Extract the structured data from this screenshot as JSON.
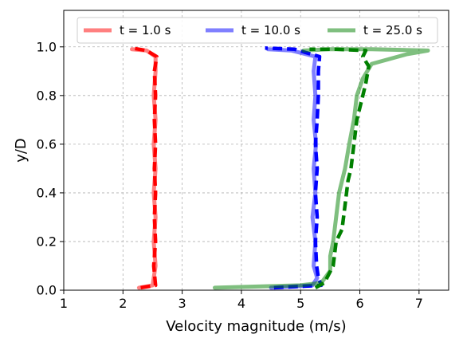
{
  "chart_data": {
    "type": "line",
    "title": "",
    "xlabel": "Velocity magnitude (m/s)",
    "ylabel": "y/D",
    "xlim": [
      1,
      7.5
    ],
    "ylim": [
      0.0,
      1.15
    ],
    "xticks": [
      "1",
      "2",
      "3",
      "4",
      "5",
      "6",
      "7"
    ],
    "yticks": [
      "0.0",
      "0.2",
      "0.4",
      "0.6",
      "0.8",
      "1.0"
    ],
    "grid": true,
    "legend": {
      "placement": "top-center",
      "columns": 3
    },
    "series": [
      {
        "name": "t = 1.0 s",
        "color": "#ff0000",
        "points": [
          [
            2.27,
            0.01
          ],
          [
            2.5,
            0.02
          ],
          [
            2.55,
            0.1
          ],
          [
            2.52,
            0.2
          ],
          [
            2.55,
            0.3
          ],
          [
            2.52,
            0.4
          ],
          [
            2.55,
            0.5
          ],
          [
            2.52,
            0.6
          ],
          [
            2.55,
            0.7
          ],
          [
            2.52,
            0.8
          ],
          [
            2.55,
            0.9
          ],
          [
            2.55,
            0.96
          ],
          [
            2.4,
            0.985
          ],
          [
            2.15,
            0.99
          ]
        ],
        "dashed_points": [
          [
            2.3,
            0.01
          ],
          [
            2.55,
            0.02
          ],
          [
            2.52,
            0.1
          ],
          [
            2.55,
            0.2
          ],
          [
            2.53,
            0.3
          ],
          [
            2.55,
            0.4
          ],
          [
            2.53,
            0.5
          ],
          [
            2.55,
            0.6
          ],
          [
            2.53,
            0.7
          ],
          [
            2.55,
            0.8
          ],
          [
            2.53,
            0.9
          ],
          [
            2.57,
            0.96
          ],
          [
            2.4,
            0.985
          ],
          [
            2.15,
            0.995
          ]
        ]
      },
      {
        "name": "t = 10.0 s",
        "color": "#0000ff",
        "points": [
          [
            4.5,
            0.01
          ],
          [
            5.2,
            0.02
          ],
          [
            5.28,
            0.05
          ],
          [
            5.22,
            0.1
          ],
          [
            5.25,
            0.2
          ],
          [
            5.2,
            0.3
          ],
          [
            5.25,
            0.4
          ],
          [
            5.22,
            0.5
          ],
          [
            5.26,
            0.6
          ],
          [
            5.22,
            0.7
          ],
          [
            5.25,
            0.8
          ],
          [
            5.22,
            0.9
          ],
          [
            5.25,
            0.96
          ],
          [
            4.85,
            0.985
          ],
          [
            4.45,
            0.99
          ]
        ],
        "dashed_points": [
          [
            4.55,
            0.01
          ],
          [
            5.35,
            0.02
          ],
          [
            5.3,
            0.05
          ],
          [
            5.27,
            0.1
          ],
          [
            5.25,
            0.2
          ],
          [
            5.28,
            0.3
          ],
          [
            5.25,
            0.4
          ],
          [
            5.28,
            0.5
          ],
          [
            5.25,
            0.6
          ],
          [
            5.28,
            0.7
          ],
          [
            5.3,
            0.8
          ],
          [
            5.3,
            0.9
          ],
          [
            5.32,
            0.96
          ],
          [
            4.9,
            0.99
          ],
          [
            4.4,
            0.995
          ]
        ]
      },
      {
        "name": "t = 25.0 s",
        "color": "#008000",
        "points": [
          [
            3.55,
            0.01
          ],
          [
            5.0,
            0.02
          ],
          [
            5.35,
            0.03
          ],
          [
            5.5,
            0.08
          ],
          [
            5.5,
            0.14
          ],
          [
            5.55,
            0.2
          ],
          [
            5.6,
            0.3
          ],
          [
            5.65,
            0.4
          ],
          [
            5.75,
            0.5
          ],
          [
            5.82,
            0.6
          ],
          [
            5.9,
            0.7
          ],
          [
            5.95,
            0.8
          ],
          [
            6.05,
            0.87
          ],
          [
            6.2,
            0.93
          ],
          [
            6.8,
            0.97
          ],
          [
            7.15,
            0.985
          ],
          [
            6.2,
            0.99
          ],
          [
            5.5,
            0.99
          ],
          [
            5.05,
            0.985
          ]
        ],
        "dashed_points": [
          [
            5.25,
            0.01
          ],
          [
            5.4,
            0.03
          ],
          [
            5.55,
            0.1
          ],
          [
            5.6,
            0.2
          ],
          [
            5.7,
            0.25
          ],
          [
            5.75,
            0.35
          ],
          [
            5.8,
            0.45
          ],
          [
            5.85,
            0.5
          ],
          [
            5.9,
            0.6
          ],
          [
            5.95,
            0.7
          ],
          [
            6.05,
            0.8
          ],
          [
            6.1,
            0.85
          ],
          [
            6.15,
            0.92
          ],
          [
            6.05,
            0.96
          ],
          [
            6.1,
            0.985
          ],
          [
            5.6,
            0.99
          ],
          [
            5.15,
            0.99
          ]
        ]
      }
    ]
  }
}
